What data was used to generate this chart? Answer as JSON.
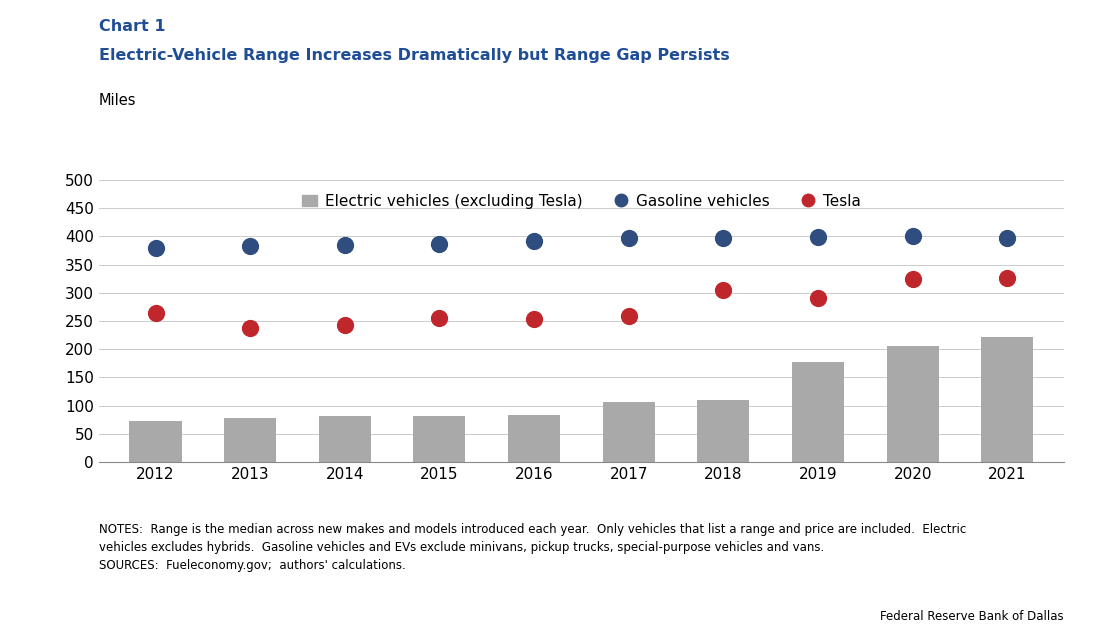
{
  "title_line1": "Chart 1",
  "title_line2": "Electric-Vehicle Range Increases Dramatically but Range Gap Persists",
  "ylabel": "Miles",
  "years": [
    2012,
    2013,
    2014,
    2015,
    2016,
    2017,
    2018,
    2019,
    2020,
    2021
  ],
  "ev_bars": [
    73,
    78,
    82,
    82,
    84,
    107,
    111,
    178,
    205,
    222
  ],
  "gasoline": [
    380,
    383,
    385,
    386,
    391,
    397,
    397,
    398,
    400,
    397
  ],
  "tesla": [
    265,
    238,
    243,
    255,
    254,
    259,
    305,
    290,
    325,
    326
  ],
  "bar_color": "#a9a9a9",
  "gasoline_color": "#2f4d7e",
  "tesla_color": "#c0272d",
  "title_color": "#1f4e96",
  "ylim": [
    0,
    500
  ],
  "yticks": [
    0,
    50,
    100,
    150,
    200,
    250,
    300,
    350,
    400,
    450,
    500
  ],
  "notes_text": "NOTES:  Range is the median across new makes and models introduced each year.  Only vehicles that list a range and price are included.  Electric\nvehicles excludes hybrids.  Gasoline vehicles and EVs exclude minivans, pickup trucks, special-purpose vehicles and vans.\nSOURCES:  Fueleconomy.gov;  authors' calculations.",
  "source_credit": "Federal Reserve Bank of Dallas",
  "legend_labels": [
    "Electric vehicles (excluding Tesla)",
    "Gasoline vehicles",
    "Tesla"
  ],
  "background_color": "#ffffff",
  "fig_width": 10.97,
  "fig_height": 6.42,
  "dpi": 100
}
